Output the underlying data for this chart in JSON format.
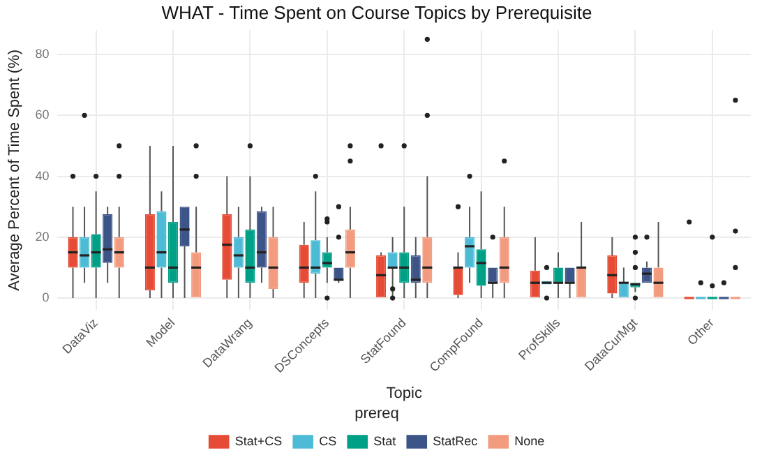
{
  "chart_data": {
    "type": "box",
    "title": "WHAT - Time Spent on Course Topics by Prerequisite",
    "xlabel": "Topic",
    "ylabel": "Average Percent of Time Spent (%)",
    "legend_title": "prereq",
    "categories": [
      "DataViz",
      "Model",
      "DataWrang",
      "DSConcepts",
      "StatFound",
      "CompFound",
      "ProfSkills",
      "DataCurMgt",
      "Other"
    ],
    "ylim": [
      -4,
      88
    ],
    "yticks": [
      0,
      20,
      40,
      60,
      80
    ],
    "grid": true,
    "legend": "bottom",
    "series": [
      {
        "name": "Stat+CS",
        "color": "#e64b35",
        "boxes": [
          {
            "low": 0,
            "q1": 10,
            "median": 15,
            "q3": 20,
            "high": 30,
            "outliers": [
              40
            ]
          },
          {
            "low": 0,
            "q1": 2.5,
            "median": 10,
            "q3": 27.5,
            "high": 50
          },
          {
            "low": 0,
            "q1": 6,
            "median": 17.5,
            "q3": 27.5,
            "high": 40
          },
          {
            "low": 0,
            "q1": 5,
            "median": 10,
            "q3": 17.5,
            "high": 25
          },
          {
            "low": 0,
            "q1": 0,
            "median": 7.5,
            "q3": 14,
            "high": 15,
            "outliers": [
              50
            ]
          },
          {
            "low": 0,
            "q1": 1,
            "median": 10,
            "q3": 10,
            "high": 15,
            "outliers": [
              30
            ]
          },
          {
            "low": 0,
            "q1": 0,
            "median": 5,
            "q3": 9,
            "high": 20
          },
          {
            "low": 0,
            "q1": 1.5,
            "median": 7.5,
            "q3": 14,
            "high": 20
          },
          {
            "low": 0,
            "q1": 0,
            "median": 0,
            "q3": 0,
            "high": 0,
            "outliers": [
              25
            ]
          }
        ]
      },
      {
        "name": "CS",
        "color": "#4dbbd5",
        "boxes": [
          {
            "low": 5,
            "q1": 10,
            "median": 14,
            "q3": 20,
            "high": 30,
            "outliers": [
              60
            ]
          },
          {
            "low": 0,
            "q1": 10,
            "median": 15,
            "q3": 28.5,
            "high": 35
          },
          {
            "low": 0,
            "q1": 10,
            "median": 14,
            "q3": 20,
            "high": 30
          },
          {
            "low": 0,
            "q1": 8,
            "median": 10,
            "q3": 19,
            "high": 35,
            "outliers": [
              40
            ]
          },
          {
            "low": 0,
            "q1": 10,
            "median": 10,
            "q3": 15,
            "high": 20,
            "outliers": [
              3,
              0
            ]
          },
          {
            "low": 5,
            "q1": 10,
            "median": 17,
            "q3": 20,
            "high": 30,
            "outliers": [
              40
            ]
          },
          {
            "low": 4.5,
            "q1": 4.5,
            "median": 5,
            "q3": 5.5,
            "high": 5.5,
            "outliers": [
              10,
              0
            ]
          },
          {
            "low": 0,
            "q1": 0,
            "median": 5,
            "q3": 5,
            "high": 10
          },
          {
            "low": 0,
            "q1": 0,
            "median": 0,
            "q3": 0,
            "high": 0,
            "outliers": [
              5
            ]
          }
        ]
      },
      {
        "name": "Stat",
        "color": "#00a087",
        "boxes": [
          {
            "low": 0,
            "q1": 10,
            "median": 15,
            "q3": 21,
            "high": 35,
            "outliers": [
              40
            ]
          },
          {
            "low": 0,
            "q1": 5,
            "median": 10,
            "q3": 25,
            "high": 50
          },
          {
            "low": 0,
            "q1": 5,
            "median": 10,
            "q3": 22.5,
            "high": 40,
            "outliers": [
              50
            ]
          },
          {
            "low": 5,
            "q1": 10,
            "median": 11.5,
            "q3": 15,
            "high": 20,
            "outliers": [
              26,
              25,
              0
            ]
          },
          {
            "low": 0,
            "q1": 5,
            "median": 10,
            "q3": 15,
            "high": 30,
            "outliers": [
              50
            ]
          },
          {
            "low": 0,
            "q1": 4,
            "median": 11.5,
            "q3": 16,
            "high": 35
          },
          {
            "low": 0,
            "q1": 5,
            "median": 5,
            "q3": 10,
            "high": 15
          },
          {
            "low": 2,
            "q1": 3.5,
            "median": 4.5,
            "q3": 5,
            "high": 5,
            "outliers": [
              0,
              10,
              15,
              20
            ]
          },
          {
            "low": 0,
            "q1": 0,
            "median": 0,
            "q3": 0,
            "high": 0,
            "outliers": [
              4,
              20
            ]
          }
        ]
      },
      {
        "name": "StatRec",
        "color": "#3c5488",
        "boxes": [
          {
            "low": 5,
            "q1": 11.5,
            "median": 16,
            "q3": 27.5,
            "high": 30
          },
          {
            "low": 0,
            "q1": 17,
            "median": 22.5,
            "q3": 30,
            "high": 30
          },
          {
            "low": 5,
            "q1": 10,
            "median": 15,
            "q3": 28.5,
            "high": 30
          },
          {
            "low": 5,
            "q1": 6,
            "median": 6,
            "q3": 10,
            "high": 10,
            "outliers": [
              20,
              30
            ]
          },
          {
            "low": 0,
            "q1": 5,
            "median": 6,
            "q3": 14,
            "high": 20
          },
          {
            "low": 0,
            "q1": 5,
            "median": 5,
            "q3": 10,
            "high": 10,
            "outliers": [
              20
            ]
          },
          {
            "low": 0,
            "q1": 5,
            "median": 5,
            "q3": 10,
            "high": 10
          },
          {
            "low": 5,
            "q1": 5,
            "median": 8,
            "q3": 10,
            "high": 12,
            "outliers": [
              20
            ]
          },
          {
            "low": 0,
            "q1": 0,
            "median": 0,
            "q3": 0,
            "high": 0,
            "outliers": [
              5
            ]
          }
        ]
      },
      {
        "name": "None",
        "color": "#f39b7f",
        "boxes": [
          {
            "low": 0,
            "q1": 10,
            "median": 15,
            "q3": 20,
            "high": 30,
            "outliers": [
              40,
              50
            ]
          },
          {
            "low": 0,
            "q1": 0,
            "median": 10,
            "q3": 15,
            "high": 30,
            "outliers": [
              40,
              50
            ]
          },
          {
            "low": 0,
            "q1": 3,
            "median": 10,
            "q3": 20,
            "high": 30
          },
          {
            "low": 0,
            "q1": 10,
            "median": 15,
            "q3": 22.5,
            "high": 30,
            "outliers": [
              45,
              50
            ]
          },
          {
            "low": 0,
            "q1": 5,
            "median": 10,
            "q3": 20,
            "high": 40,
            "outliers": [
              60,
              85
            ]
          },
          {
            "low": 0,
            "q1": 5,
            "median": 10,
            "q3": 20,
            "high": 30,
            "outliers": [
              45
            ]
          },
          {
            "low": 0,
            "q1": 0,
            "median": 10,
            "q3": 10,
            "high": 25
          },
          {
            "low": 0,
            "q1": 0,
            "median": 5,
            "q3": 10,
            "high": 25
          },
          {
            "low": 0,
            "q1": 0,
            "median": 0,
            "q3": 0,
            "high": 0,
            "outliers": [
              10,
              22,
              65
            ]
          }
        ]
      }
    ]
  }
}
